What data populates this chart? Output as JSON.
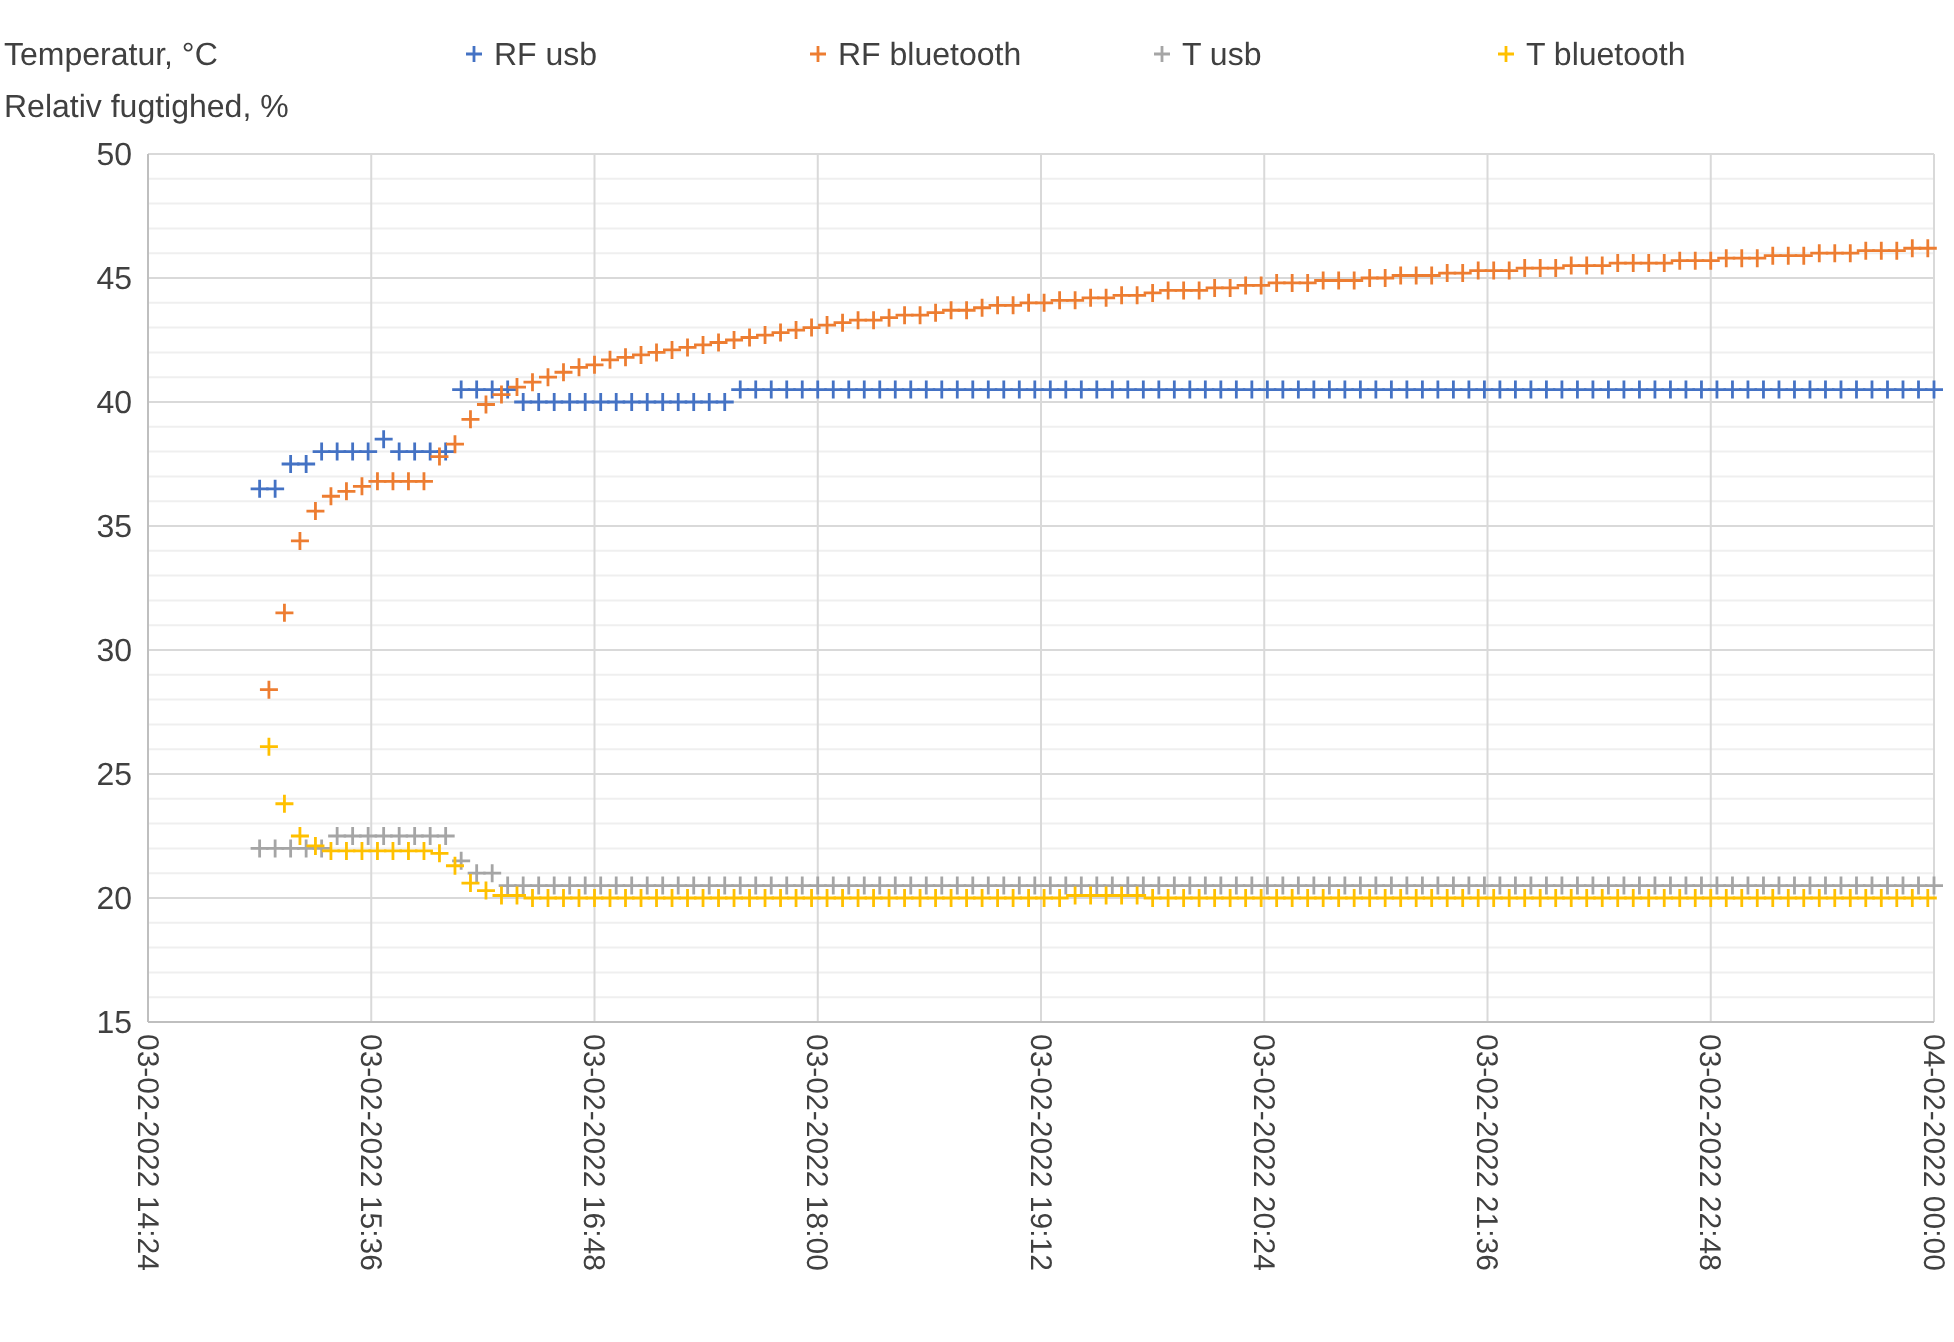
{
  "chart_data": {
    "type": "scatter",
    "ylabel": "Temperatur, °C\nRelativ fugtighed, %",
    "marker": "cross",
    "grid": true,
    "legend": "top",
    "xlim": [
      "2022-02-03T14:24",
      "2022-02-04T00:00"
    ],
    "xticks": [
      {
        "value": "2022-02-03T14:24",
        "label": "03-02-2022 14:24"
      },
      {
        "value": "2022-02-03T15:36",
        "label": "03-02-2022 15:36"
      },
      {
        "value": "2022-02-03T16:48",
        "label": "03-02-2022 16:48"
      },
      {
        "value": "2022-02-03T18:00",
        "label": "03-02-2022 18:00"
      },
      {
        "value": "2022-02-03T19:12",
        "label": "03-02-2022 19:12"
      },
      {
        "value": "2022-02-03T20:24",
        "label": "03-02-2022 20:24"
      },
      {
        "value": "2022-02-03T21:36",
        "label": "03-02-2022 21:36"
      },
      {
        "value": "2022-02-03T22:48",
        "label": "03-02-2022 22:48"
      },
      {
        "value": "2022-02-04T00:00",
        "label": "04-02-2022 00:00"
      }
    ],
    "ylim": [
      15,
      50
    ],
    "yticks": [
      15,
      {
        "value": 16,
        "label": null
      },
      {
        "value": 17,
        "label": null
      },
      {
        "value": 18,
        "label": null
      },
      {
        "value": 19,
        "label": null
      },
      20,
      {
        "value": 21,
        "label": null
      },
      {
        "value": 22,
        "label": null
      },
      {
        "value": 23,
        "label": null
      },
      {
        "value": 24,
        "label": null
      },
      25,
      {
        "value": 26,
        "label": null
      },
      {
        "value": 27,
        "label": null
      },
      {
        "value": 28,
        "label": null
      },
      {
        "value": 29,
        "label": null
      },
      30,
      {
        "value": 31,
        "label": null
      },
      {
        "value": 32,
        "label": null
      },
      {
        "value": 33,
        "label": null
      },
      {
        "value": 34,
        "label": null
      },
      35,
      {
        "value": 36,
        "label": null
      },
      {
        "value": 37,
        "label": null
      },
      {
        "value": 38,
        "label": null
      },
      {
        "value": 39,
        "label": null
      },
      40,
      {
        "value": 41,
        "label": null
      },
      {
        "value": 42,
        "label": null
      },
      {
        "value": 43,
        "label": null
      },
      {
        "value": 44,
        "label": null
      },
      45,
      {
        "value": 46,
        "label": null
      },
      {
        "value": 47,
        "label": null
      },
      {
        "value": 48,
        "label": null
      },
      {
        "value": 49,
        "label": null
      },
      50
    ],
    "series": [
      {
        "name": "RF usb",
        "color": "#4472c4",
        "x": [
          "2022-02-03T15:00",
          "2022-02-03T15:05",
          "2022-02-03T15:10",
          "2022-02-03T15:15",
          "2022-02-03T15:20",
          "2022-02-03T15:25",
          "2022-02-03T15:30",
          "2022-02-03T15:35",
          "2022-02-03T15:40",
          "2022-02-03T15:45",
          "2022-02-03T15:50",
          "2022-02-03T15:55",
          "2022-02-03T16:00",
          "2022-02-03T16:05",
          "2022-02-03T16:10",
          "2022-02-03T16:15",
          "2022-02-03T16:20",
          "2022-02-03T16:25",
          "2022-02-03T16:30",
          "2022-02-03T16:35",
          "2022-02-03T16:40",
          "2022-02-03T16:45",
          "2022-02-03T16:50",
          "2022-02-03T16:55",
          "2022-02-03T17:00",
          "2022-02-03T17:05",
          "2022-02-03T17:10",
          "2022-02-03T17:15",
          "2022-02-03T17:20",
          "2022-02-03T17:25",
          "2022-02-03T17:30",
          "2022-02-03T17:35",
          "2022-02-03T17:40",
          "2022-02-03T17:45",
          "2022-02-03T17:50",
          "2022-02-03T17:55",
          "2022-02-03T18:00",
          "2022-02-03T18:05",
          "2022-02-03T18:10",
          "2022-02-03T18:15",
          "2022-02-03T18:20",
          "2022-02-03T18:25",
          "2022-02-03T18:30",
          "2022-02-03T18:35",
          "2022-02-03T18:40",
          "2022-02-03T18:45",
          "2022-02-03T18:50",
          "2022-02-03T18:55",
          "2022-02-03T19:00",
          "2022-02-03T19:05",
          "2022-02-03T19:10",
          "2022-02-03T19:15",
          "2022-02-03T19:20",
          "2022-02-03T19:25",
          "2022-02-03T19:30",
          "2022-02-03T19:35",
          "2022-02-03T19:40",
          "2022-02-03T19:45",
          "2022-02-03T19:50",
          "2022-02-03T19:55",
          "2022-02-03T20:00",
          "2022-02-03T20:05",
          "2022-02-03T20:10",
          "2022-02-03T20:15",
          "2022-02-03T20:20",
          "2022-02-03T20:25",
          "2022-02-03T20:30",
          "2022-02-03T20:35",
          "2022-02-03T20:40",
          "2022-02-03T20:45",
          "2022-02-03T20:50",
          "2022-02-03T20:55",
          "2022-02-03T21:00",
          "2022-02-03T21:05",
          "2022-02-03T21:10",
          "2022-02-03T21:15",
          "2022-02-03T21:20",
          "2022-02-03T21:25",
          "2022-02-03T21:30",
          "2022-02-03T21:35",
          "2022-02-03T21:40",
          "2022-02-03T21:45",
          "2022-02-03T21:50",
          "2022-02-03T21:55",
          "2022-02-03T22:00",
          "2022-02-03T22:05",
          "2022-02-03T22:10",
          "2022-02-03T22:15",
          "2022-02-03T22:20",
          "2022-02-03T22:25",
          "2022-02-03T22:30",
          "2022-02-03T22:35",
          "2022-02-03T22:40",
          "2022-02-03T22:45",
          "2022-02-03T22:50",
          "2022-02-03T22:55",
          "2022-02-03T23:00",
          "2022-02-03T23:05",
          "2022-02-03T23:10",
          "2022-02-03T23:15",
          "2022-02-03T23:20",
          "2022-02-03T23:25",
          "2022-02-03T23:30",
          "2022-02-03T23:35",
          "2022-02-03T23:40",
          "2022-02-03T23:45",
          "2022-02-03T23:50",
          "2022-02-03T23:55",
          "2022-02-04T00:00"
        ],
        "values": [
          36.5,
          36.5,
          37.5,
          37.5,
          38.0,
          38.0,
          38.0,
          38.0,
          38.5,
          38.0,
          38.0,
          38.0,
          38.0,
          40.5,
          40.5,
          40.5,
          40.5,
          40.0,
          40.0,
          40.0,
          40.0,
          40.0,
          40.0,
          40.0,
          40.0,
          40.0,
          40.0,
          40.0,
          40.0,
          40.0,
          40.0,
          40.5,
          40.5,
          40.5,
          40.5,
          40.5,
          40.5,
          40.5,
          40.5,
          40.5,
          40.5,
          40.5,
          40.5,
          40.5,
          40.5,
          40.5,
          40.5,
          40.5,
          40.5,
          40.5,
          40.5,
          40.5,
          40.5,
          40.5,
          40.5,
          40.5,
          40.5,
          40.5,
          40.5,
          40.5,
          40.5,
          40.5,
          40.5,
          40.5,
          40.5,
          40.5,
          40.5,
          40.5,
          40.5,
          40.5,
          40.5,
          40.5,
          40.5,
          40.5,
          40.5,
          40.5,
          40.5,
          40.5,
          40.5,
          40.5,
          40.5,
          40.5,
          40.5,
          40.5,
          40.5,
          40.5,
          40.5,
          40.5,
          40.5,
          40.5,
          40.5,
          40.5,
          40.5,
          40.5,
          40.5,
          40.5,
          40.5,
          40.5,
          40.5,
          40.5,
          40.5,
          40.5,
          40.5,
          40.5,
          40.5,
          40.5,
          40.5,
          40.5,
          40.5
        ]
      },
      {
        "name": "RF bluetooth",
        "color": "#ed7d31",
        "x": [
          "2022-02-03T15:03",
          "2022-02-03T15:08",
          "2022-02-03T15:13",
          "2022-02-03T15:18",
          "2022-02-03T15:23",
          "2022-02-03T15:28",
          "2022-02-03T15:33",
          "2022-02-03T15:38",
          "2022-02-03T15:43",
          "2022-02-03T15:48",
          "2022-02-03T15:53",
          "2022-02-03T15:58",
          "2022-02-03T16:03",
          "2022-02-03T16:08",
          "2022-02-03T16:13",
          "2022-02-03T16:18",
          "2022-02-03T16:23",
          "2022-02-03T16:28",
          "2022-02-03T16:33",
          "2022-02-03T16:38",
          "2022-02-03T16:43",
          "2022-02-03T16:48",
          "2022-02-03T16:53",
          "2022-02-03T16:58",
          "2022-02-03T17:03",
          "2022-02-03T17:08",
          "2022-02-03T17:13",
          "2022-02-03T17:18",
          "2022-02-03T17:23",
          "2022-02-03T17:28",
          "2022-02-03T17:33",
          "2022-02-03T17:38",
          "2022-02-03T17:43",
          "2022-02-03T17:48",
          "2022-02-03T17:53",
          "2022-02-03T17:58",
          "2022-02-03T18:03",
          "2022-02-03T18:08",
          "2022-02-03T18:13",
          "2022-02-03T18:18",
          "2022-02-03T18:23",
          "2022-02-03T18:28",
          "2022-02-03T18:33",
          "2022-02-03T18:38",
          "2022-02-03T18:43",
          "2022-02-03T18:48",
          "2022-02-03T18:53",
          "2022-02-03T18:58",
          "2022-02-03T19:03",
          "2022-02-03T19:08",
          "2022-02-03T19:13",
          "2022-02-03T19:18",
          "2022-02-03T19:23",
          "2022-02-03T19:28",
          "2022-02-03T19:33",
          "2022-02-03T19:38",
          "2022-02-03T19:43",
          "2022-02-03T19:48",
          "2022-02-03T19:53",
          "2022-02-03T19:58",
          "2022-02-03T20:03",
          "2022-02-03T20:08",
          "2022-02-03T20:13",
          "2022-02-03T20:18",
          "2022-02-03T20:23",
          "2022-02-03T20:28",
          "2022-02-03T20:33",
          "2022-02-03T20:38",
          "2022-02-03T20:43",
          "2022-02-03T20:48",
          "2022-02-03T20:53",
          "2022-02-03T20:58",
          "2022-02-03T21:03",
          "2022-02-03T21:08",
          "2022-02-03T21:13",
          "2022-02-03T21:18",
          "2022-02-03T21:23",
          "2022-02-03T21:28",
          "2022-02-03T21:33",
          "2022-02-03T21:38",
          "2022-02-03T21:43",
          "2022-02-03T21:48",
          "2022-02-03T21:53",
          "2022-02-03T21:58",
          "2022-02-03T22:03",
          "2022-02-03T22:08",
          "2022-02-03T22:13",
          "2022-02-03T22:18",
          "2022-02-03T22:23",
          "2022-02-03T22:28",
          "2022-02-03T22:33",
          "2022-02-03T22:38",
          "2022-02-03T22:43",
          "2022-02-03T22:48",
          "2022-02-03T22:53",
          "2022-02-03T22:58",
          "2022-02-03T23:03",
          "2022-02-03T23:08",
          "2022-02-03T23:13",
          "2022-02-03T23:18",
          "2022-02-03T23:23",
          "2022-02-03T23:28",
          "2022-02-03T23:33",
          "2022-02-03T23:38",
          "2022-02-03T23:43",
          "2022-02-03T23:48",
          "2022-02-03T23:53",
          "2022-02-03T23:58"
        ],
        "values": [
          28.4,
          31.5,
          34.4,
          35.6,
          36.2,
          36.4,
          36.6,
          36.8,
          36.8,
          36.8,
          36.8,
          37.8,
          38.3,
          39.3,
          39.9,
          40.3,
          40.6,
          40.8,
          41.0,
          41.2,
          41.4,
          41.5,
          41.7,
          41.8,
          41.9,
          42.0,
          42.1,
          42.2,
          42.3,
          42.4,
          42.5,
          42.6,
          42.7,
          42.8,
          42.9,
          43.0,
          43.1,
          43.2,
          43.3,
          43.3,
          43.4,
          43.5,
          43.5,
          43.6,
          43.7,
          43.7,
          43.8,
          43.9,
          43.9,
          44.0,
          44.0,
          44.1,
          44.1,
          44.2,
          44.2,
          44.3,
          44.3,
          44.4,
          44.5,
          44.5,
          44.5,
          44.6,
          44.6,
          44.7,
          44.7,
          44.8,
          44.8,
          44.8,
          44.9,
          44.9,
          44.9,
          45.0,
          45.0,
          45.1,
          45.1,
          45.1,
          45.2,
          45.2,
          45.3,
          45.3,
          45.3,
          45.4,
          45.4,
          45.4,
          45.5,
          45.5,
          45.5,
          45.6,
          45.6,
          45.6,
          45.6,
          45.7,
          45.7,
          45.7,
          45.8,
          45.8,
          45.8,
          45.9,
          45.9,
          45.9,
          46.0,
          46.0,
          46.0,
          46.1,
          46.1,
          46.1,
          46.2,
          46.2
        ]
      },
      {
        "name": "T usb",
        "color": "#a5a5a5",
        "x": [
          "2022-02-03T15:00",
          "2022-02-03T15:05",
          "2022-02-03T15:10",
          "2022-02-03T15:15",
          "2022-02-03T15:20",
          "2022-02-03T15:25",
          "2022-02-03T15:30",
          "2022-02-03T15:35",
          "2022-02-03T15:40",
          "2022-02-03T15:45",
          "2022-02-03T15:50",
          "2022-02-03T15:55",
          "2022-02-03T16:00",
          "2022-02-03T16:05",
          "2022-02-03T16:10",
          "2022-02-03T16:15",
          "2022-02-03T16:20",
          "2022-02-03T16:25",
          "2022-02-03T16:30",
          "2022-02-03T16:35",
          "2022-02-03T16:40",
          "2022-02-03T16:45",
          "2022-02-03T16:50",
          "2022-02-03T16:55",
          "2022-02-03T17:00",
          "2022-02-03T17:05",
          "2022-02-03T17:10",
          "2022-02-03T17:15",
          "2022-02-03T17:20",
          "2022-02-03T17:25",
          "2022-02-03T17:30",
          "2022-02-03T17:35",
          "2022-02-03T17:40",
          "2022-02-03T17:45",
          "2022-02-03T17:50",
          "2022-02-03T17:55",
          "2022-02-03T18:00",
          "2022-02-03T18:05",
          "2022-02-03T18:10",
          "2022-02-03T18:15",
          "2022-02-03T18:20",
          "2022-02-03T18:25",
          "2022-02-03T18:30",
          "2022-02-03T18:35",
          "2022-02-03T18:40",
          "2022-02-03T18:45",
          "2022-02-03T18:50",
          "2022-02-03T18:55",
          "2022-02-03T19:00",
          "2022-02-03T19:05",
          "2022-02-03T19:10",
          "2022-02-03T19:15",
          "2022-02-03T19:20",
          "2022-02-03T19:25",
          "2022-02-03T19:30",
          "2022-02-03T19:35",
          "2022-02-03T19:40",
          "2022-02-03T19:45",
          "2022-02-03T19:50",
          "2022-02-03T19:55",
          "2022-02-03T20:00",
          "2022-02-03T20:05",
          "2022-02-03T20:10",
          "2022-02-03T20:15",
          "2022-02-03T20:20",
          "2022-02-03T20:25",
          "2022-02-03T20:30",
          "2022-02-03T20:35",
          "2022-02-03T20:40",
          "2022-02-03T20:45",
          "2022-02-03T20:50",
          "2022-02-03T20:55",
          "2022-02-03T21:00",
          "2022-02-03T21:05",
          "2022-02-03T21:10",
          "2022-02-03T21:15",
          "2022-02-03T21:20",
          "2022-02-03T21:25",
          "2022-02-03T21:30",
          "2022-02-03T21:35",
          "2022-02-03T21:40",
          "2022-02-03T21:45",
          "2022-02-03T21:50",
          "2022-02-03T21:55",
          "2022-02-03T22:00",
          "2022-02-03T22:05",
          "2022-02-03T22:10",
          "2022-02-03T22:15",
          "2022-02-03T22:20",
          "2022-02-03T22:25",
          "2022-02-03T22:30",
          "2022-02-03T22:35",
          "2022-02-03T22:40",
          "2022-02-03T22:45",
          "2022-02-03T22:50",
          "2022-02-03T22:55",
          "2022-02-03T23:00",
          "2022-02-03T23:05",
          "2022-02-03T23:10",
          "2022-02-03T23:15",
          "2022-02-03T23:20",
          "2022-02-03T23:25",
          "2022-02-03T23:30",
          "2022-02-03T23:35",
          "2022-02-03T23:40",
          "2022-02-03T23:45",
          "2022-02-03T23:50",
          "2022-02-03T23:55",
          "2022-02-04T00:00"
        ],
        "values": [
          22.0,
          22.0,
          22.0,
          22.0,
          22.0,
          22.5,
          22.5,
          22.5,
          22.5,
          22.5,
          22.5,
          22.5,
          22.5,
          21.5,
          21.0,
          21.0,
          20.5,
          20.5,
          20.5,
          20.5,
          20.5,
          20.5,
          20.5,
          20.5,
          20.5,
          20.5,
          20.5,
          20.5,
          20.5,
          20.5,
          20.5,
          20.5,
          20.5,
          20.5,
          20.5,
          20.5,
          20.5,
          20.5,
          20.5,
          20.5,
          20.5,
          20.5,
          20.5,
          20.5,
          20.5,
          20.5,
          20.5,
          20.5,
          20.5,
          20.5,
          20.5,
          20.5,
          20.5,
          20.5,
          20.5,
          20.5,
          20.5,
          20.5,
          20.5,
          20.5,
          20.5,
          20.5,
          20.5,
          20.5,
          20.5,
          20.5,
          20.5,
          20.5,
          20.5,
          20.5,
          20.5,
          20.5,
          20.5,
          20.5,
          20.5,
          20.5,
          20.5,
          20.5,
          20.5,
          20.5,
          20.5,
          20.5,
          20.5,
          20.5,
          20.5,
          20.5,
          20.5,
          20.5,
          20.5,
          20.5,
          20.5,
          20.5,
          20.5,
          20.5,
          20.5,
          20.5,
          20.5,
          20.5,
          20.5,
          20.5,
          20.5,
          20.5,
          20.5,
          20.5,
          20.5,
          20.5,
          20.5,
          20.5,
          20.5
        ]
      },
      {
        "name": "T bluetooth",
        "color": "#ffc000",
        "x": [
          "2022-02-03T15:03",
          "2022-02-03T15:08",
          "2022-02-03T15:13",
          "2022-02-03T15:18",
          "2022-02-03T15:23",
          "2022-02-03T15:28",
          "2022-02-03T15:33",
          "2022-02-03T15:38",
          "2022-02-03T15:43",
          "2022-02-03T15:48",
          "2022-02-03T15:53",
          "2022-02-03T15:58",
          "2022-02-03T16:03",
          "2022-02-03T16:08",
          "2022-02-03T16:13",
          "2022-02-03T16:18",
          "2022-02-03T16:23",
          "2022-02-03T16:28",
          "2022-02-03T16:33",
          "2022-02-03T16:38",
          "2022-02-03T16:43",
          "2022-02-03T16:48",
          "2022-02-03T16:53",
          "2022-02-03T16:58",
          "2022-02-03T17:03",
          "2022-02-03T17:08",
          "2022-02-03T17:13",
          "2022-02-03T17:18",
          "2022-02-03T17:23",
          "2022-02-03T17:28",
          "2022-02-03T17:33",
          "2022-02-03T17:38",
          "2022-02-03T17:43",
          "2022-02-03T17:48",
          "2022-02-03T17:53",
          "2022-02-03T17:58",
          "2022-02-03T18:03",
          "2022-02-03T18:08",
          "2022-02-03T18:13",
          "2022-02-03T18:18",
          "2022-02-03T18:23",
          "2022-02-03T18:28",
          "2022-02-03T18:33",
          "2022-02-03T18:38",
          "2022-02-03T18:43",
          "2022-02-03T18:48",
          "2022-02-03T18:53",
          "2022-02-03T18:58",
          "2022-02-03T19:03",
          "2022-02-03T19:08",
          "2022-02-03T19:13",
          "2022-02-03T19:18",
          "2022-02-03T19:23",
          "2022-02-03T19:28",
          "2022-02-03T19:33",
          "2022-02-03T19:38",
          "2022-02-03T19:43",
          "2022-02-03T19:48",
          "2022-02-03T19:53",
          "2022-02-03T19:58",
          "2022-02-03T20:03",
          "2022-02-03T20:08",
          "2022-02-03T20:13",
          "2022-02-03T20:18",
          "2022-02-03T20:23",
          "2022-02-03T20:28",
          "2022-02-03T20:33",
          "2022-02-03T20:38",
          "2022-02-03T20:43",
          "2022-02-03T20:48",
          "2022-02-03T20:53",
          "2022-02-03T20:58",
          "2022-02-03T21:03",
          "2022-02-03T21:08",
          "2022-02-03T21:13",
          "2022-02-03T21:18",
          "2022-02-03T21:23",
          "2022-02-03T21:28",
          "2022-02-03T21:33",
          "2022-02-03T21:38",
          "2022-02-03T21:43",
          "2022-02-03T21:48",
          "2022-02-03T21:53",
          "2022-02-03T21:58",
          "2022-02-03T22:03",
          "2022-02-03T22:08",
          "2022-02-03T22:13",
          "2022-02-03T22:18",
          "2022-02-03T22:23",
          "2022-02-03T22:28",
          "2022-02-03T22:33",
          "2022-02-03T22:38",
          "2022-02-03T22:43",
          "2022-02-03T22:48",
          "2022-02-03T22:53",
          "2022-02-03T22:58",
          "2022-02-03T23:03",
          "2022-02-03T23:08",
          "2022-02-03T23:13",
          "2022-02-03T23:18",
          "2022-02-03T23:23",
          "2022-02-03T23:28",
          "2022-02-03T23:33",
          "2022-02-03T23:38",
          "2022-02-03T23:43",
          "2022-02-03T23:48",
          "2022-02-03T23:53",
          "2022-02-03T23:58"
        ],
        "values": [
          26.1,
          23.8,
          22.5,
          22.1,
          21.9,
          21.9,
          21.9,
          21.9,
          21.9,
          21.9,
          21.9,
          21.8,
          21.3,
          20.6,
          20.3,
          20.1,
          20.1,
          20.0,
          20.0,
          20.0,
          20.0,
          20.0,
          20.0,
          20.0,
          20.0,
          20.0,
          20.0,
          20.0,
          20.0,
          20.0,
          20.0,
          20.0,
          20.0,
          20.0,
          20.0,
          20.0,
          20.0,
          20.0,
          20.0,
          20.0,
          20.0,
          20.0,
          20.0,
          20.0,
          20.0,
          20.0,
          20.0,
          20.0,
          20.0,
          20.0,
          20.0,
          20.0,
          20.1,
          20.1,
          20.1,
          20.1,
          20.1,
          20.0,
          20.0,
          20.0,
          20.0,
          20.0,
          20.0,
          20.0,
          20.0,
          20.0,
          20.0,
          20.0,
          20.0,
          20.0,
          20.0,
          20.0,
          20.0,
          20.0,
          20.0,
          20.0,
          20.0,
          20.0,
          20.0,
          20.0,
          20.0,
          20.0,
          20.0,
          20.0,
          20.0,
          20.0,
          20.0,
          20.0,
          20.0,
          20.0,
          20.0,
          20.0,
          20.0,
          20.0,
          20.0,
          20.0,
          20.0,
          20.0,
          20.0,
          20.0,
          20.0,
          20.0,
          20.0,
          20.0,
          20.0,
          20.0,
          20.0,
          20.0
        ]
      }
    ]
  }
}
